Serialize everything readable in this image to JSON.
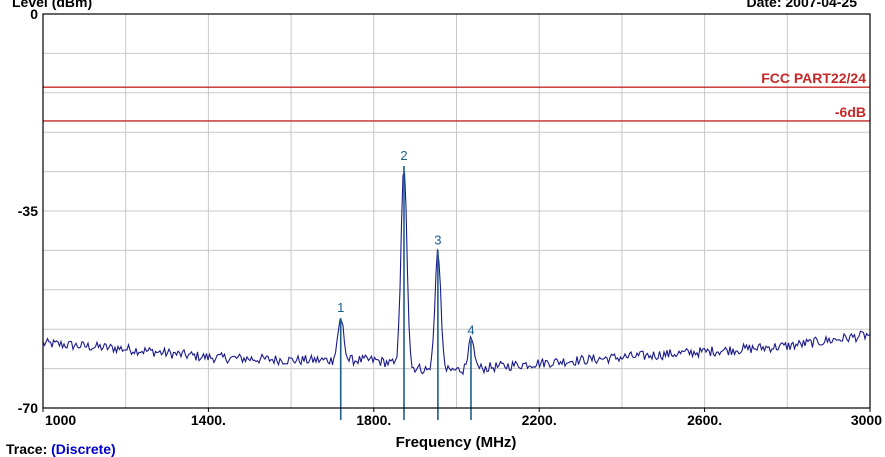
{
  "header": {
    "y_axis_label": "Level (dBm)",
    "date_label": "Date: 2007-04-25"
  },
  "footer": {
    "trace_label": "Trace:",
    "trace_value": "(Discrete)"
  },
  "colors": {
    "trace": "#1a1a8c",
    "marker": "#1b5e8c",
    "limit": "#c62828",
    "grid": "#c8c8c8",
    "axis": "#000000"
  },
  "chart_data": {
    "type": "line",
    "title": "",
    "xlabel": "Frequency (MHz)",
    "ylabel": "Level (dBm)",
    "xlim": [
      1000,
      3000
    ],
    "ylim": [
      -70,
      0
    ],
    "x_ticks": [
      {
        "value": 1000,
        "label": "1000"
      },
      {
        "value": 1400,
        "label": "1400."
      },
      {
        "value": 1800,
        "label": "1800."
      },
      {
        "value": 2200,
        "label": "2200."
      },
      {
        "value": 2600,
        "label": "2600."
      },
      {
        "value": 3000,
        "label": "3000"
      }
    ],
    "y_ticks": [
      {
        "value": 0,
        "label": "0"
      },
      {
        "value": -35,
        "label": "-35"
      },
      {
        "value": -70,
        "label": "-70"
      }
    ],
    "grid": true,
    "limit_lines": [
      {
        "name": "FCC PART22/24",
        "y": -13
      },
      {
        "name": "-6dB",
        "y": -19
      }
    ],
    "noise_floor": {
      "x": [
        1000,
        1200,
        1400,
        1600,
        1800,
        1950,
        2050,
        2200,
        2400,
        2600,
        2800,
        3000
      ],
      "y": [
        -58.5,
        -59.5,
        -61,
        -61.5,
        -61.5,
        -63.5,
        -63,
        -62,
        -61,
        -60,
        -59,
        -57
      ]
    },
    "peaks": [
      {
        "label": "1",
        "x": 1720,
        "y": -54
      },
      {
        "label": "2",
        "x": 1873,
        "y": -27
      },
      {
        "label": "3",
        "x": 1955,
        "y": -42
      },
      {
        "label": "4",
        "x": 2035,
        "y": -58
      }
    ]
  }
}
